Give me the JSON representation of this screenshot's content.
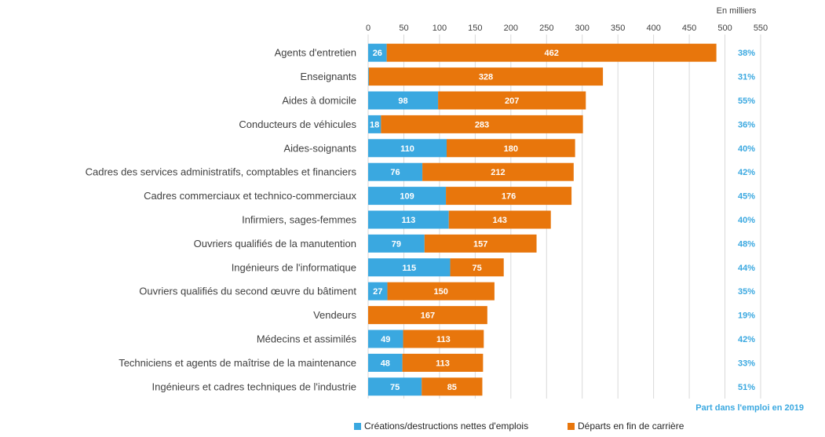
{
  "chart_data": {
    "type": "bar",
    "orientation": "horizontal",
    "stacked": true,
    "unit_label": "En milliers",
    "categories": [
      "Agents d'entretien",
      "Enseignants",
      "Aides à domicile",
      "Conducteurs de véhicules",
      "Aides-soignants",
      "Cadres des services administratifs, comptables et financiers",
      "Cadres commerciaux et technico-commerciaux",
      "Infirmiers, sages-femmes",
      "Ouvriers qualifiés de la manutention",
      "Ingénieurs de l'informatique",
      "Ouvriers qualifiés du second œuvre du bâtiment",
      "Vendeurs",
      "Médecins et assimilés",
      "Techniciens et agents de maîtrise de la maintenance",
      "Ingénieurs et cadres techniques de l'industrie"
    ],
    "series": [
      {
        "name": "Créations/destructions nettes d'emplois",
        "color": "#3aa8e0",
        "values": [
          26,
          1,
          98,
          18,
          110,
          76,
          109,
          113,
          79,
          115,
          27,
          0,
          49,
          48,
          75
        ],
        "labels": [
          "26",
          "1",
          "98",
          "18",
          "110",
          "76",
          "109",
          "113",
          "79",
          "115",
          "27",
          "",
          "49",
          "48",
          "75"
        ]
      },
      {
        "name": "Départs en fin de carrière",
        "color": "#e8760c",
        "values": [
          462,
          328,
          207,
          283,
          180,
          212,
          176,
          143,
          157,
          75,
          150,
          167,
          113,
          113,
          85
        ],
        "labels": [
          "462",
          "328",
          "207",
          "283",
          "180",
          "212",
          "176",
          "143",
          "157",
          "75",
          "150",
          "167",
          "113",
          "113",
          "85"
        ]
      }
    ],
    "share_title": "Part dans l'emploi en 2019",
    "share_values": [
      "38%",
      "31%",
      "55%",
      "36%",
      "40%",
      "42%",
      "45%",
      "40%",
      "48%",
      "44%",
      "35%",
      "19%",
      "42%",
      "33%",
      "51%"
    ],
    "xlim": [
      0,
      550
    ],
    "xticks": [
      0,
      50,
      100,
      150,
      200,
      250,
      300,
      350,
      400,
      450,
      500,
      550
    ],
    "xaxis_position": "top",
    "grid": true,
    "legend_position": "bottom"
  }
}
